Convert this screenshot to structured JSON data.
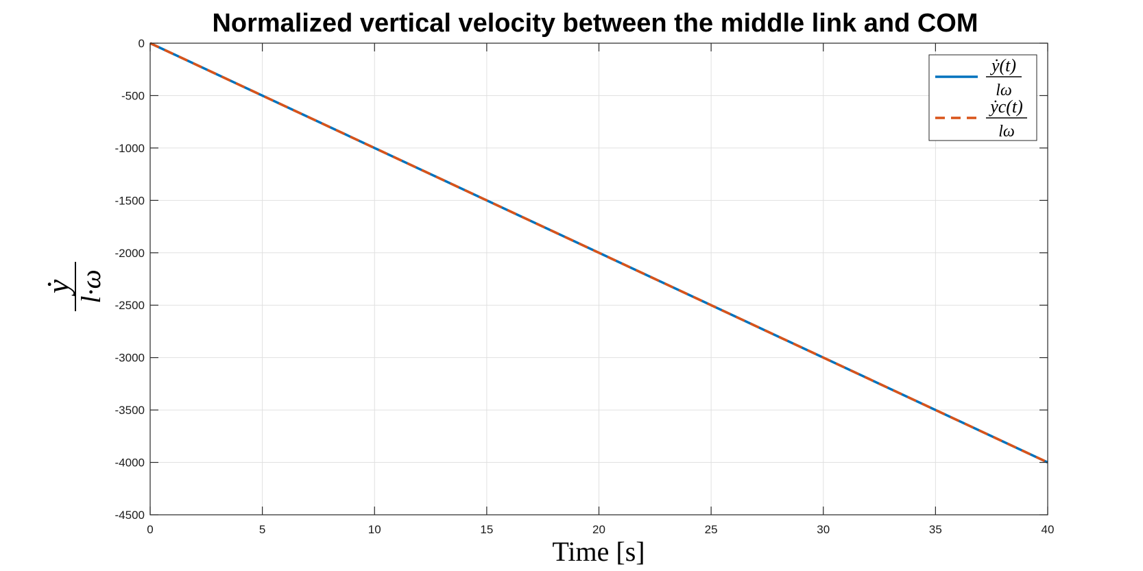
{
  "chart_data": {
    "type": "line",
    "title": "Normalized vertical velocity between the middle link and COM",
    "xlabel": "Time [s]",
    "ylabel": {
      "numerator": "ẏ",
      "denominator": "l·ω"
    },
    "xlim": [
      0,
      40
    ],
    "ylim": [
      -4500,
      0
    ],
    "xticks": [
      0,
      5,
      10,
      15,
      20,
      25,
      30,
      35,
      40
    ],
    "yticks": [
      0,
      -500,
      -1000,
      -1500,
      -2000,
      -2500,
      -3000,
      -3500,
      -4000,
      -4500
    ],
    "grid": true,
    "legend_position": "top-right",
    "series": [
      {
        "name": {
          "numerator": "ẏ(t)",
          "denominator": "lω"
        },
        "style": "solid",
        "color": "#0072BD",
        "x": [
          0,
          40
        ],
        "y": [
          0,
          -4000
        ]
      },
      {
        "name": {
          "numerator": "ẏc(t)",
          "denominator": "lω"
        },
        "style": "dashed",
        "color": "#D95319",
        "x": [
          0,
          40
        ],
        "y": [
          0,
          -4000
        ]
      }
    ]
  }
}
